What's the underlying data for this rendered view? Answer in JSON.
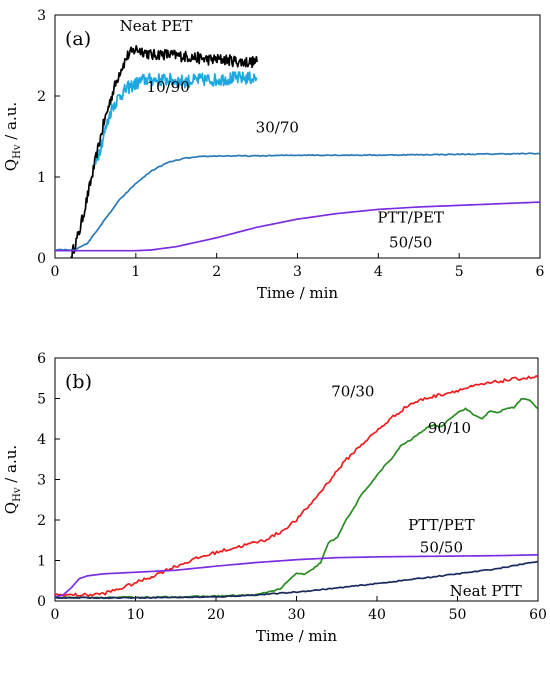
{
  "chart_data": [
    {
      "type": "line",
      "panel_label": "(a)",
      "xlabel": "Time / min",
      "ylabel": "Q",
      "ylabel_sub": "Hv",
      "ylabel_unit": " / a.u.",
      "xlim": [
        0,
        6
      ],
      "ylim": [
        0,
        3
      ],
      "xticks": [
        0,
        1,
        2,
        3,
        4,
        5,
        6
      ],
      "yticks": [
        0,
        1,
        2,
        3
      ],
      "grid": false,
      "series": [
        {
          "name": "Neat PET",
          "color": "#000000",
          "noise": 0.07,
          "x": [
            0.2,
            0.3,
            0.4,
            0.5,
            0.6,
            0.7,
            0.8,
            0.9,
            1.0,
            1.1,
            1.2,
            1.3,
            1.5,
            1.7,
            1.9,
            2.1,
            2.3,
            2.5
          ],
          "y": [
            0.02,
            0.32,
            0.75,
            1.2,
            1.65,
            2.0,
            2.3,
            2.5,
            2.58,
            2.55,
            2.5,
            2.52,
            2.5,
            2.48,
            2.45,
            2.45,
            2.42,
            2.42
          ]
        },
        {
          "name": "10/90",
          "color": "#1ea8e0",
          "noise": 0.08,
          "x": [
            0.5,
            0.6,
            0.7,
            0.8,
            0.9,
            1.0,
            1.1,
            1.2,
            1.4,
            1.6,
            1.8,
            2.0,
            2.2,
            2.5
          ],
          "y": [
            1.15,
            1.5,
            1.85,
            2.0,
            2.1,
            2.15,
            2.2,
            2.2,
            2.2,
            2.18,
            2.2,
            2.2,
            2.22,
            2.22
          ]
        },
        {
          "name": "30/70",
          "color": "#2a7ab8",
          "noise": 0.006,
          "x": [
            0,
            0.25,
            0.4,
            0.6,
            0.8,
            1.0,
            1.2,
            1.4,
            1.6,
            1.8,
            2.0,
            2.5,
            3.0,
            4.0,
            5.0,
            6.0
          ],
          "y": [
            0.1,
            0.1,
            0.18,
            0.45,
            0.72,
            0.92,
            1.08,
            1.18,
            1.23,
            1.25,
            1.26,
            1.26,
            1.27,
            1.27,
            1.28,
            1.29
          ],
          "label_x": 2.75,
          "label_y": 1.55
        },
        {
          "name": "PTT/PET 50/50",
          "color": "#7b2ee0",
          "noise": 0,
          "x": [
            0,
            0.5,
            1.0,
            1.2,
            1.5,
            2.0,
            2.5,
            3.0,
            3.5,
            4.0,
            4.5,
            5.0,
            5.5,
            6.0
          ],
          "y": [
            0.09,
            0.09,
            0.09,
            0.1,
            0.14,
            0.25,
            0.38,
            0.48,
            0.55,
            0.6,
            0.63,
            0.65,
            0.67,
            0.69
          ]
        }
      ],
      "annotations": [
        {
          "text": "Neat PET",
          "x": 1.25,
          "y": 2.8
        },
        {
          "text": "10/90",
          "x": 1.4,
          "y": 2.05
        },
        {
          "text": "30/70",
          "x": 2.75,
          "y": 1.55
        },
        {
          "text": "PTT/PET",
          "x": 4.4,
          "y": 0.44
        },
        {
          "text": "50/50",
          "x": 4.4,
          "y": 0.13
        }
      ]
    },
    {
      "type": "line",
      "panel_label": "(b)",
      "xlabel": "Time / min",
      "ylabel": "Q",
      "ylabel_sub": "Hv",
      "ylabel_unit": " / a.u.",
      "xlim": [
        0,
        60
      ],
      "ylim": [
        0,
        6
      ],
      "xticks": [
        0,
        10,
        20,
        30,
        40,
        50,
        60
      ],
      "yticks": [
        0,
        1,
        2,
        3,
        4,
        5,
        6
      ],
      "grid": false,
      "series": [
        {
          "name": "70/30",
          "color": "#ee1c1c",
          "noise": 0.04,
          "x": [
            0,
            2,
            4,
            6,
            8,
            10,
            12,
            14,
            16,
            18,
            20,
            22,
            24,
            26,
            28,
            30,
            32,
            34,
            36,
            38,
            40,
            42,
            44,
            46,
            48,
            50,
            52,
            54,
            56,
            58,
            60
          ],
          "y": [
            0.15,
            0.15,
            0.15,
            0.18,
            0.3,
            0.45,
            0.6,
            0.78,
            0.93,
            1.08,
            1.2,
            1.3,
            1.4,
            1.5,
            1.7,
            2.0,
            2.45,
            2.95,
            3.45,
            3.85,
            4.2,
            4.55,
            4.85,
            5.0,
            5.1,
            5.2,
            5.3,
            5.38,
            5.45,
            5.5,
            5.53
          ]
        },
        {
          "name": "90/10",
          "color": "#2a8c22",
          "noise": 0.015,
          "x": [
            0,
            5,
            10,
            15,
            20,
            25,
            28,
            29,
            30,
            30.5,
            31,
            32,
            33,
            34,
            35,
            36,
            37,
            38,
            39,
            40,
            41,
            42,
            43,
            44,
            45,
            46,
            47,
            48,
            49,
            50,
            51,
            52,
            53,
            54,
            55,
            56,
            57,
            58,
            59,
            60
          ],
          "y": [
            0.08,
            0.08,
            0.09,
            0.1,
            0.12,
            0.15,
            0.3,
            0.5,
            0.68,
            0.68,
            0.65,
            0.78,
            0.95,
            1.45,
            1.55,
            1.95,
            2.25,
            2.6,
            2.85,
            3.1,
            3.35,
            3.55,
            3.85,
            3.95,
            4.1,
            4.25,
            4.35,
            4.3,
            4.5,
            4.65,
            4.75,
            4.6,
            4.5,
            4.68,
            4.65,
            4.75,
            4.78,
            5.0,
            4.95,
            4.75
          ]
        },
        {
          "name": "PTT/PET 50/50",
          "color": "#7b2ee0",
          "noise": 0,
          "x": [
            0,
            1,
            2,
            3,
            4,
            6,
            8,
            10,
            15,
            20,
            25,
            30,
            35,
            40,
            45,
            50,
            55,
            60
          ],
          "y": [
            0.1,
            0.15,
            0.32,
            0.55,
            0.62,
            0.67,
            0.69,
            0.71,
            0.76,
            0.86,
            0.95,
            1.02,
            1.07,
            1.09,
            1.1,
            1.11,
            1.12,
            1.14
          ]
        },
        {
          "name": "Neat PTT",
          "color": "#1a2a5e",
          "noise": 0.012,
          "x": [
            0,
            10,
            20,
            25,
            30,
            35,
            40,
            45,
            50,
            55,
            60
          ],
          "y": [
            0.08,
            0.08,
            0.1,
            0.15,
            0.22,
            0.32,
            0.43,
            0.55,
            0.67,
            0.8,
            0.98
          ]
        }
      ],
      "annotations": [
        {
          "text": "70/30",
          "x": 37,
          "y": 5.05
        },
        {
          "text": "90/10",
          "x": 49,
          "y": 4.15
        },
        {
          "text": "PTT/PET",
          "x": 48,
          "y": 1.75
        },
        {
          "text": "50/50",
          "x": 48,
          "y": 1.2
        },
        {
          "text": "Neat PTT",
          "x": 53.5,
          "y": 0.12
        }
      ]
    }
  ]
}
